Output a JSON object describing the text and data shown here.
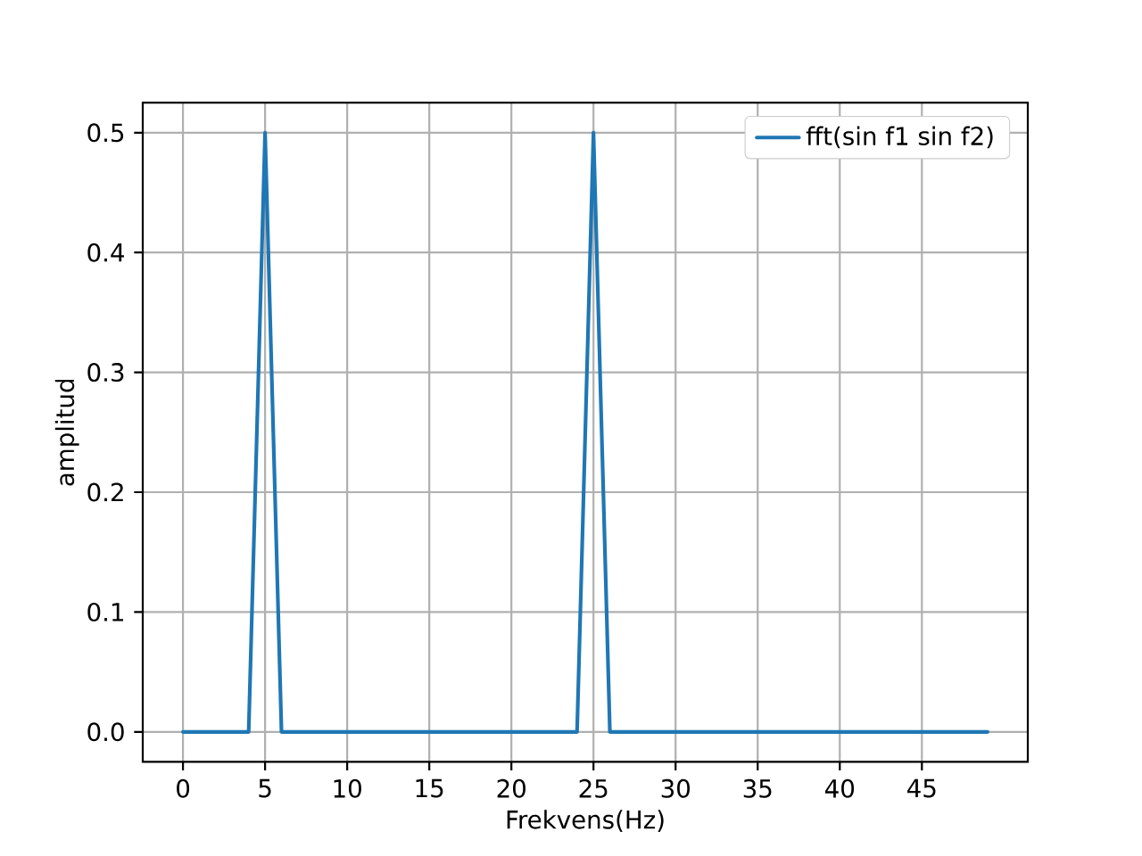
{
  "chart_data": {
    "type": "line",
    "xlabel": "Frekvens(Hz)",
    "ylabel": "amplitud",
    "x": [
      0,
      1,
      2,
      3,
      4,
      5,
      6,
      7,
      8,
      9,
      10,
      11,
      12,
      13,
      14,
      15,
      16,
      17,
      18,
      19,
      20,
      21,
      22,
      23,
      24,
      25,
      26,
      27,
      28,
      29,
      30,
      31,
      32,
      33,
      34,
      35,
      36,
      37,
      38,
      39,
      40,
      41,
      42,
      43,
      44,
      45,
      46,
      47,
      48,
      49
    ],
    "series": [
      {
        "name": "fft(sin f1 sin f2)",
        "color": "#1f77b4",
        "values": [
          0,
          0,
          0,
          0,
          0,
          0.5,
          0,
          0,
          0,
          0,
          0,
          0,
          0,
          0,
          0,
          0,
          0,
          0,
          0,
          0,
          0,
          0,
          0,
          0,
          0,
          0.5,
          0,
          0,
          0,
          0,
          0,
          0,
          0,
          0,
          0,
          0,
          0,
          0,
          0,
          0,
          0,
          0,
          0,
          0,
          0,
          0,
          0,
          0,
          0,
          0
        ]
      }
    ],
    "xlim": [
      -2.45,
      51.45
    ],
    "ylim": [
      -0.025,
      0.525
    ],
    "xticks": [
      0,
      5,
      10,
      15,
      20,
      25,
      30,
      35,
      40,
      45
    ],
    "yticks": [
      {
        "value": 0,
        "label": "0.0"
      },
      0.1,
      0.2,
      0.3,
      0.4,
      0.5
    ],
    "grid": true,
    "legend": "top right",
    "marker": "none",
    "line_style": "solid"
  }
}
